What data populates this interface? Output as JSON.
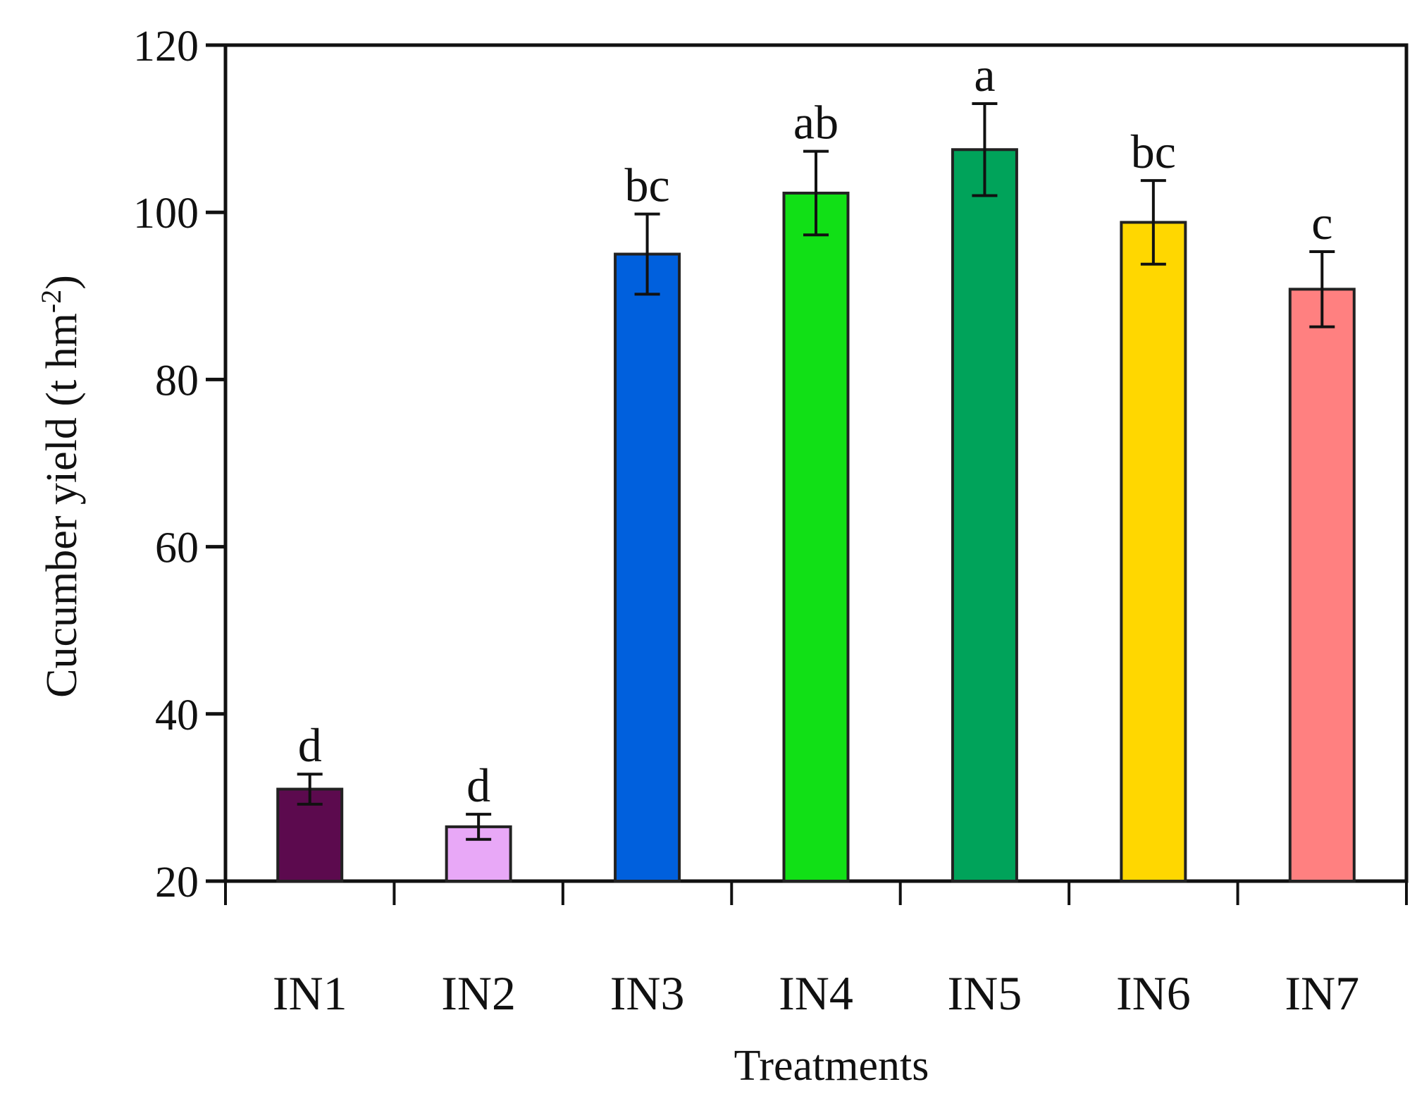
{
  "chart_data": {
    "type": "bar",
    "categories": [
      "IN1",
      "IN2",
      "IN3",
      "IN4",
      "IN5",
      "IN6",
      "IN7"
    ],
    "values": [
      31,
      26.5,
      95,
      102.3,
      107.5,
      98.8,
      90.8
    ],
    "errors": [
      1.8,
      1.5,
      4.8,
      5.0,
      5.5,
      5.0,
      4.5
    ],
    "significance": [
      "d",
      "d",
      "bc",
      "ab",
      "a",
      "bc",
      "c"
    ],
    "colors": [
      "#5c0a4e",
      "#e8a8f7",
      "#0060dd",
      "#11e016",
      "#00a35a",
      "#ffd700",
      "#ff8080"
    ],
    "xlabel": "Treatments",
    "ylabel": "Cucumber yield (t hm",
    "ylabel_sup": "-2",
    "ylabel_tail": ")",
    "ylim": [
      20,
      120
    ],
    "yticks": [
      20,
      40,
      60,
      80,
      100,
      120
    ],
    "grid": false,
    "legend": "none"
  }
}
